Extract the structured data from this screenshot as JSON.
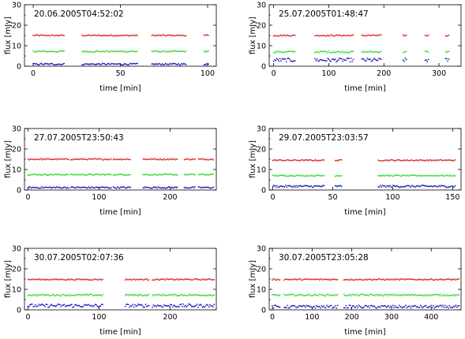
{
  "chart_data": [
    {
      "type": "scatter",
      "title": "20.06.2005T04:52:02",
      "xlabel": "time [min]",
      "ylabel": "flux [mJy]",
      "xlim": [
        -5,
        105
      ],
      "ylim": [
        0,
        30
      ],
      "xticks": [
        0,
        50,
        100
      ],
      "yticks": [
        0,
        10,
        20,
        30
      ],
      "segments": [
        [
          0,
          18
        ],
        [
          28,
          60
        ],
        [
          68,
          88
        ],
        [
          98,
          101
        ]
      ],
      "series": [
        {
          "color": "#e03030",
          "level": 15.0,
          "noise": 0.3
        },
        {
          "color": "#40d840",
          "level": 7.2,
          "noise": 0.35
        },
        {
          "color": "#2020c0",
          "level": 1.0,
          "noise": 0.4
        }
      ]
    },
    {
      "type": "scatter",
      "title": "25.07.2005T01:48:47",
      "xlabel": "time [min]",
      "ylabel": "flux [mJy]",
      "xlim": [
        -8,
        340
      ],
      "ylim": [
        0,
        30
      ],
      "xticks": [
        0,
        100,
        200,
        300
      ],
      "yticks": [
        0,
        10,
        20,
        30
      ],
      "segments": [
        [
          0,
          40
        ],
        [
          75,
          145
        ],
        [
          160,
          195
        ],
        [
          235,
          242
        ],
        [
          275,
          282
        ],
        [
          312,
          318
        ]
      ],
      "series": [
        {
          "color": "#e03030",
          "level": 15.0,
          "noise": 0.3
        },
        {
          "color": "#40d840",
          "level": 7.0,
          "noise": 0.45
        },
        {
          "color": "#2020c0",
          "level": 3.0,
          "noise": 0.9
        }
      ]
    },
    {
      "type": "scatter",
      "title": "27.07.2005T23:50:43",
      "xlabel": "time [min]",
      "ylabel": "flux [mJy]",
      "xlim": [
        -5,
        265
      ],
      "ylim": [
        0,
        30
      ],
      "xticks": [
        0,
        100,
        200
      ],
      "yticks": [
        0,
        10,
        20,
        30
      ],
      "segments": [
        [
          0,
          57
        ],
        [
          60,
          118
        ],
        [
          120,
          145
        ],
        [
          162,
          210
        ],
        [
          220,
          235
        ],
        [
          240,
          262
        ]
      ],
      "series": [
        {
          "color": "#e03030",
          "level": 15.0,
          "noise": 0.3
        },
        {
          "color": "#40d840",
          "level": 7.5,
          "noise": 0.3
        },
        {
          "color": "#2020c0",
          "level": 1.2,
          "noise": 0.4
        }
      ]
    },
    {
      "type": "scatter",
      "title": "29.07.2005T23:03:57",
      "xlabel": "time [min]",
      "ylabel": "flux [mJy]",
      "xlim": [
        -3,
        157
      ],
      "ylim": [
        0,
        30
      ],
      "xticks": [
        0,
        50,
        100,
        150
      ],
      "yticks": [
        0,
        10,
        20,
        30
      ],
      "segments": [
        [
          0,
          43
        ],
        [
          52,
          58
        ],
        [
          88,
          152
        ]
      ],
      "series": [
        {
          "color": "#e03030",
          "level": 14.5,
          "noise": 0.3
        },
        {
          "color": "#40d840",
          "level": 7.0,
          "noise": 0.3
        },
        {
          "color": "#2020c0",
          "level": 1.8,
          "noise": 0.5
        }
      ]
    },
    {
      "type": "scatter",
      "title": "30.07.2005T02:07:36",
      "xlabel": "time [min]",
      "ylabel": "flux [mJy]",
      "xlim": [
        -5,
        265
      ],
      "ylim": [
        0,
        30
      ],
      "xticks": [
        0,
        100,
        200
      ],
      "yticks": [
        0,
        10,
        20,
        30
      ],
      "segments": [
        [
          0,
          105
        ],
        [
          137,
          170
        ],
        [
          175,
          262
        ]
      ],
      "series": [
        {
          "color": "#e03030",
          "level": 14.8,
          "noise": 0.3
        },
        {
          "color": "#40d840",
          "level": 7.2,
          "noise": 0.4
        },
        {
          "color": "#2020c0",
          "level": 2.0,
          "noise": 0.8
        }
      ]
    },
    {
      "type": "scatter",
      "title": "30.07.2005T23:05:28",
      "xlabel": "time [min]",
      "ylabel": "flux [mJy]",
      "xlim": [
        -8,
        475
      ],
      "ylim": [
        0,
        30
      ],
      "xticks": [
        0,
        100,
        200,
        300,
        400
      ],
      "yticks": [
        0,
        10,
        20,
        30
      ],
      "segments": [
        [
          0,
          20
        ],
        [
          30,
          165
        ],
        [
          180,
          470
        ]
      ],
      "series": [
        {
          "color": "#e03030",
          "level": 14.8,
          "noise": 0.3
        },
        {
          "color": "#40d840",
          "level": 7.2,
          "noise": 0.4
        },
        {
          "color": "#2020c0",
          "level": 1.5,
          "noise": 0.7
        }
      ]
    }
  ]
}
